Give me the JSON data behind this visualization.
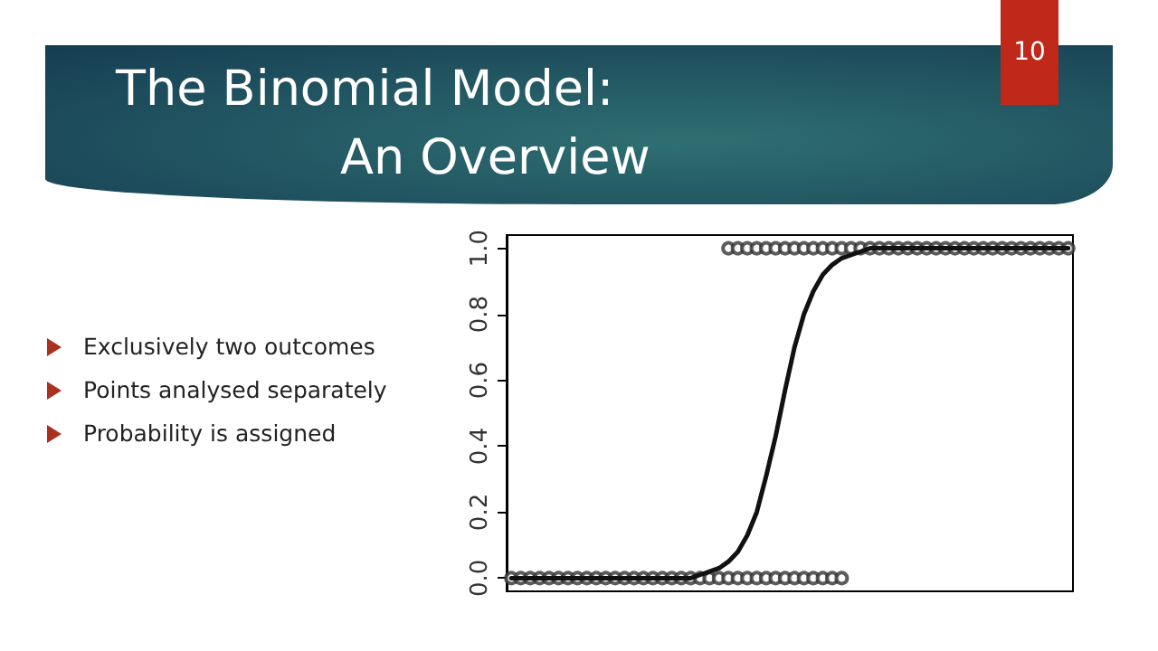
{
  "chart_data": {
    "type": "line",
    "title": "The Binomial Model:\nAn Overview",
    "annotations": [
      "10",
      "Exclusively two outcomes",
      "Points analysed separately",
      "Probability is assigned"
    ],
    "categories": [
      null,
      null,
      null,
      null,
      null,
      null,
      null,
      null,
      null,
      null,
      null,
      null,
      null,
      null,
      null,
      null,
      null,
      null,
      null,
      null,
      null,
      null,
      null,
      null,
      null,
      null,
      null,
      null,
      null,
      null,
      null,
      null,
      null,
      null,
      null,
      null,
      null,
      null,
      null,
      null,
      null,
      null,
      null,
      null,
      null,
      null,
      null,
      null,
      null,
      null,
      null,
      null,
      null,
      null,
      null,
      null,
      null,
      null,
      null,
      null
    ],
    "series": [
      {
        "type": "scatter",
        "color": "#333333",
        "marker": "circle",
        "values": [
          0,
          0,
          0,
          0,
          0,
          0,
          0,
          0,
          0,
          0,
          0,
          0,
          0,
          0,
          0,
          0,
          0,
          0,
          0,
          0,
          0,
          0,
          0,
          0,
          0,
          0,
          0,
          0,
          0,
          0,
          0,
          0,
          0,
          0,
          0,
          0,
          null,
          null,
          null,
          null,
          null,
          null,
          null,
          null,
          null,
          null,
          null,
          null,
          null,
          null,
          null,
          null,
          null,
          null,
          null,
          null,
          null,
          null,
          null,
          null
        ]
      },
      {
        "type": "scatter",
        "color": "#333333",
        "marker": "circle",
        "values": [
          null,
          null,
          null,
          null,
          null,
          null,
          null,
          null,
          null,
          null,
          null,
          null,
          null,
          null,
          null,
          null,
          null,
          null,
          null,
          null,
          null,
          null,
          null,
          1,
          1,
          1,
          1,
          1,
          1,
          1,
          1,
          1,
          1,
          1,
          1,
          1,
          1,
          1,
          1,
          1,
          1,
          1,
          1,
          1,
          1,
          1,
          1,
          1,
          1,
          1,
          1,
          1,
          1,
          1,
          1,
          1,
          1,
          1,
          1,
          1
        ]
      },
      {
        "color": "#111111",
        "marker": "none",
        "values": [
          0,
          0,
          0,
          0,
          0,
          0,
          0,
          0,
          0,
          0,
          0,
          0,
          0,
          0,
          0,
          0,
          0,
          0,
          0,
          0,
          0.01,
          0.02,
          0.03,
          0.05,
          0.08,
          0.13,
          0.2,
          0.31,
          0.43,
          0.57,
          0.7,
          0.8,
          0.87,
          0.92,
          0.95,
          0.97,
          0.98,
          0.99,
          1,
          1,
          1,
          1,
          1,
          1,
          1,
          1,
          1,
          1,
          1,
          1,
          1,
          1,
          1,
          1,
          1,
          1,
          1,
          1,
          1,
          1
        ]
      }
    ],
    "ylim": [
      -0.04,
      1.04
    ],
    "yticks": [
      {
        "value": 0,
        "label": "0.0"
      },
      0.2,
      0.4,
      0.6,
      0.8,
      {
        "value": 1,
        "label": "1.0"
      }
    ],
    "tick_labels": "y",
    "grid": false,
    "line_style": "solid"
  }
}
